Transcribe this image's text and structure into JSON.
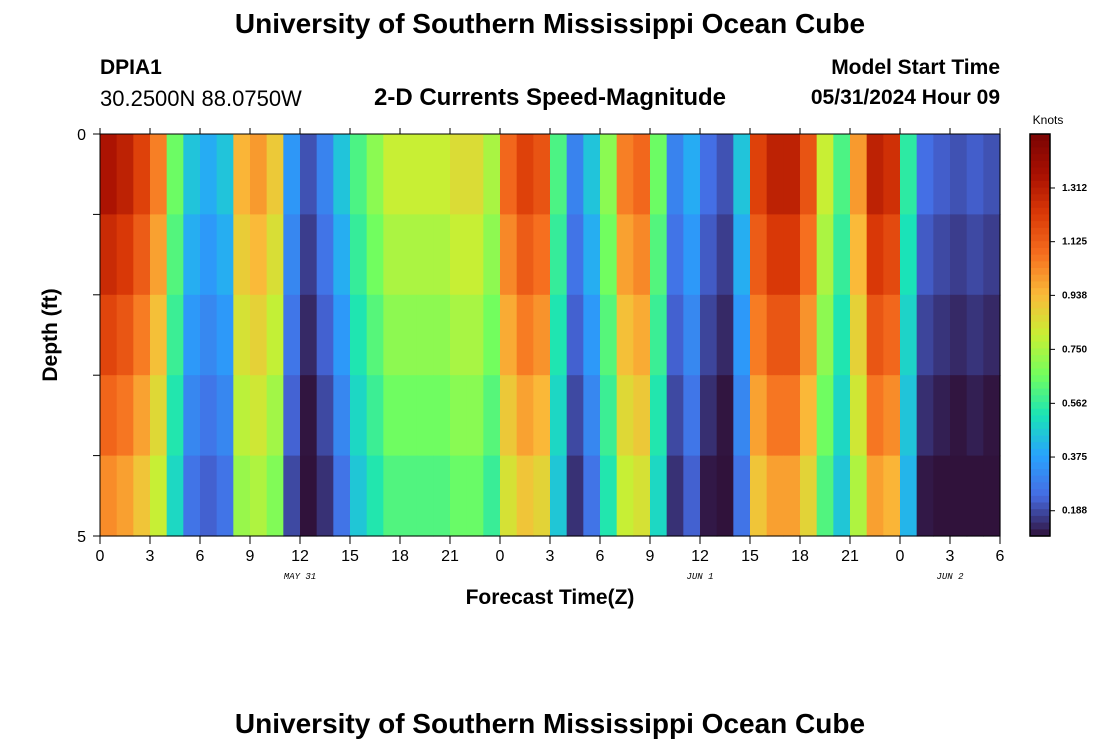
{
  "header": {
    "title": "University of Southern Mississippi Ocean Cube",
    "station_id": "DPIA1",
    "station_coords": "30.2500N  88.0750W",
    "plot_title": "2-D Currents Speed-Magnitude",
    "model_start_label": "Model Start Time",
    "model_start_value": "05/31/2024 Hour 09"
  },
  "footer": {
    "title": "University of Southern Mississippi Ocean Cube"
  },
  "colors": {
    "high": "#7a0403",
    "low": "#30123b",
    "missing": "#000000"
  },
  "chart_data": {
    "type": "heatmap",
    "title": "2-D Currents Speed-Magnitude",
    "xlabel": "Forecast Time(Z)",
    "ylabel": "Depth (ft)",
    "xlim": [
      0,
      54
    ],
    "ylim": [
      5,
      0
    ],
    "x_tick_labels": [
      "0",
      "3",
      "6",
      "9",
      "12",
      "15",
      "18",
      "21",
      "0",
      "3",
      "6",
      "9",
      "12",
      "15",
      "18",
      "21",
      "0",
      "3",
      "6"
    ],
    "day_labels": [
      {
        "label": "MAY 31",
        "hour": 12
      },
      {
        "label": "JUN 1",
        "hour": 36
      },
      {
        "label": "JUN 2",
        "hour": 60
      }
    ],
    "y_tick_labels": [
      "0",
      "5"
    ],
    "colorbar": {
      "title": "Knots",
      "min": 0.1,
      "max": 1.5,
      "tick_labels": [
        "1.312",
        "1.125",
        "0.938",
        "0.750",
        "0.562",
        "0.375",
        "0.188"
      ],
      "tick_values": [
        1.312,
        1.125,
        0.938,
        0.75,
        0.562,
        0.375,
        0.188
      ],
      "colormap": "turbo"
    },
    "depth_bands": [
      0.5,
      1.5,
      2.5,
      3.5,
      4.5
    ],
    "speed_by_hour_surface": [
      1.35,
      1.3,
      1.2,
      1.05,
      0.65,
      0.45,
      0.4,
      0.45,
      0.95,
      1.0,
      0.9,
      0.35,
      0.2,
      0.3,
      0.45,
      0.6,
      0.7,
      0.8,
      0.8,
      0.8,
      0.8,
      0.85,
      0.85,
      0.75,
      1.1,
      1.2,
      1.15,
      0.6,
      0.3,
      0.45,
      0.7,
      1.05,
      1.1,
      0.65,
      0.3,
      0.4,
      0.25,
      0.2,
      0.45,
      1.2,
      1.3,
      1.3,
      1.15,
      0.8,
      0.6,
      1.0,
      1.3,
      1.25,
      0.55,
      0.25,
      0.22,
      0.2,
      0.22,
      0.2
    ]
  }
}
